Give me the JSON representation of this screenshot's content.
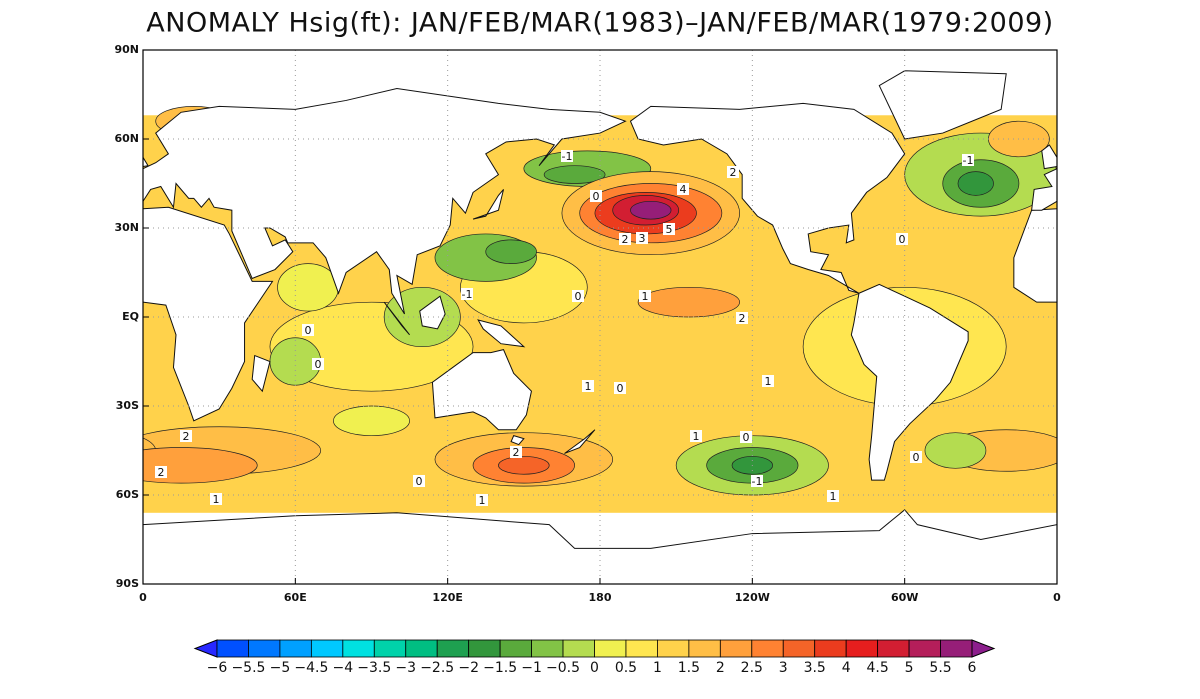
{
  "chart_data": {
    "type": "map",
    "title": "ANOMALY Hsig(ft): JAN/FEB/MAR(1983)–JAN/FEB/MAR(1979:2009)",
    "xlim": [
      0,
      360
    ],
    "ylim": [
      -90,
      90
    ],
    "xticks": [
      0,
      {
        "value": 60,
        "label": "60E"
      },
      {
        "value": 120,
        "label": "120E"
      },
      180,
      {
        "value": 240,
        "label": "120W"
      },
      {
        "value": 300,
        "label": "60W"
      },
      {
        "value": 360,
        "label": "0"
      }
    ],
    "yticks": [
      {
        "value": -90,
        "label": "90S"
      },
      {
        "value": -60,
        "label": "60S"
      },
      {
        "value": -30,
        "label": "30S"
      },
      {
        "value": 0,
        "label": "EQ"
      },
      {
        "value": 30,
        "label": "30N"
      },
      {
        "value": 60,
        "label": "60N"
      },
      {
        "value": 90,
        "label": "90N"
      }
    ],
    "grid": true,
    "contour_labels": [
      -1,
      0,
      4,
      2,
      2,
      3,
      5,
      -1,
      0,
      -1,
      0,
      1,
      2,
      0,
      0,
      1,
      0,
      1,
      2,
      1,
      0,
      2,
      2,
      0,
      -1,
      1,
      1,
      1,
      0
    ],
    "colorbar": {
      "extend": "both",
      "levels": [
        {
          "value": -6,
          "label": "−6"
        },
        {
          "value": -5.5,
          "label": "−5.5"
        },
        {
          "value": -5,
          "label": "−5"
        },
        {
          "value": -4.5,
          "label": "−4.5"
        },
        {
          "value": -4,
          "label": "−4"
        },
        {
          "value": -3.5,
          "label": "−3.5"
        },
        {
          "value": -3,
          "label": "−3"
        },
        {
          "value": -2.5,
          "label": "−2.5"
        },
        {
          "value": -2,
          "label": "−2"
        },
        {
          "value": -1.5,
          "label": "−1.5"
        },
        {
          "value": -1,
          "label": "−1"
        },
        {
          "value": -0.5,
          "label": "−0.5"
        },
        0,
        0.5,
        1,
        1.5,
        2,
        2.5,
        3,
        3.5,
        4,
        4.5,
        5,
        5.5,
        6
      ],
      "colors": [
        "#2828ff",
        "#0050ff",
        "#0078ff",
        "#00a0ff",
        "#00c8ff",
        "#00e1e1",
        "#00d2aa",
        "#00be82",
        "#1ea050",
        "#32963c",
        "#5aaa3c",
        "#82c346",
        "#b4dc50",
        "#f0f050",
        "#ffe650",
        "#ffd24b",
        "#ffbe46",
        "#ffa03c",
        "#ff8232",
        "#f56428",
        "#eb3c1e",
        "#e61e1e",
        "#d21e32",
        "#b41e5a",
        "#961e78",
        "#8c1e8c"
      ]
    }
  }
}
